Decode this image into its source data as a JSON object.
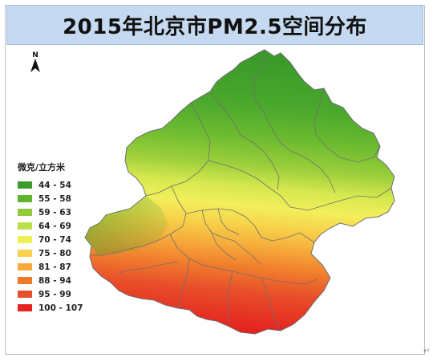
{
  "title": "2015年北京市PM2.5空间分布",
  "north_label": "N",
  "legend": {
    "title": "微克/立方米",
    "items": [
      {
        "label": "44 - 54",
        "color": "#3a9a2a"
      },
      {
        "label": "55 - 58",
        "color": "#5fb52e"
      },
      {
        "label": "59 - 63",
        "color": "#8fcb3a"
      },
      {
        "label": "64 - 69",
        "color": "#bde04a"
      },
      {
        "label": "70 - 74",
        "color": "#eef05a"
      },
      {
        "label": "75 - 80",
        "color": "#f7d24a"
      },
      {
        "label": "81 - 87",
        "color": "#f6a83a"
      },
      {
        "label": "88 - 94",
        "color": "#f07a2c"
      },
      {
        "label": "95 - 99",
        "color": "#e8502a"
      },
      {
        "label": "100 - 107",
        "color": "#e52320"
      }
    ]
  },
  "corner_mark": "↵"
}
